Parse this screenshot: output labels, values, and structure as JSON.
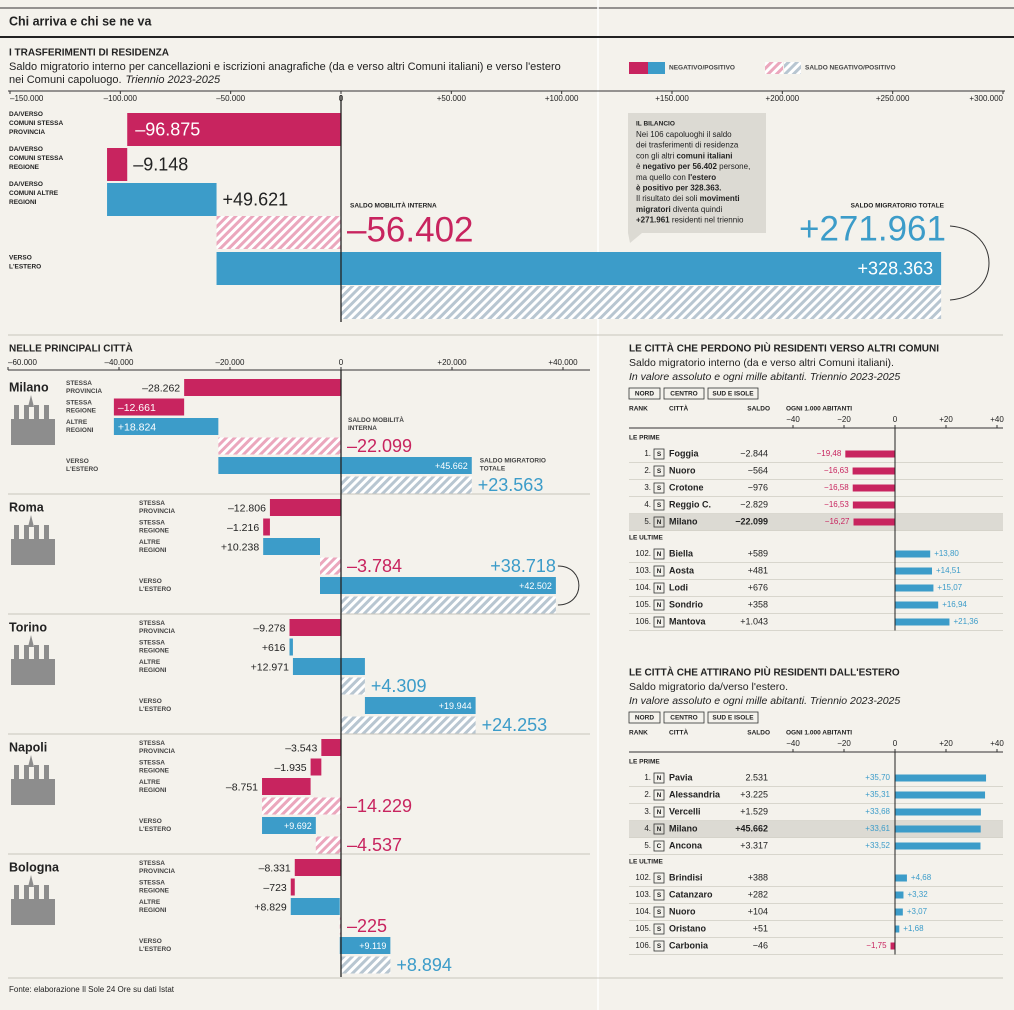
{
  "header": {
    "kicker": "Chi arriva e chi se ne va"
  },
  "source": "Fonte: elaborazione Il Sole 24 Ore su dati Istat",
  "chart_data": [
    {
      "type": "waterfall",
      "title": "I TRASFERIMENTI DI RESIDENZA",
      "subtitle": [
        "Saldo migratorio interno per cancellazioni e iscrizioni anagrafiche (da e verso altri Comuni italiani) e verso l'estero",
        "nei Comuni capoluogo."
      ],
      "subtitle_italic": "Triennio 2023-2025",
      "legend": [
        "NEGATIVO/POSITIVO",
        "SALDO NEGATIVO/POSITIVO"
      ],
      "colors": {
        "negative": "#c8245f",
        "positive": "#3c9cc9"
      },
      "hatch_colors": {
        "negative": "#eba7bd",
        "positive": "#b8c6d1"
      },
      "xlim": [
        -150000,
        300000
      ],
      "xticks": [
        {
          "value": -150000,
          "label": "–150.000"
        },
        {
          "value": -100000,
          "label": "–100.000"
        },
        {
          "value": -50000,
          "label": "–50.000"
        },
        0,
        {
          "value": 50000,
          "label": "+50.000"
        },
        {
          "value": 100000,
          "label": "+100.000"
        },
        {
          "value": 150000,
          "label": "+150.000"
        },
        {
          "value": 200000,
          "label": "+200.000"
        },
        {
          "value": 250000,
          "label": "+250.000"
        },
        {
          "value": 300000,
          "label": "+300.000"
        }
      ],
      "categories": [
        [
          "DA/VERSO",
          "COMUNI STESSA",
          "PROVINCIA"
        ],
        [
          "DA/VERSO",
          "COMUNI STESSA",
          "REGIONE"
        ],
        [
          "DA/VERSO",
          "COMUNI ALTRE",
          "REGIONI"
        ],
        [
          "VERSO",
          "L'ESTERO"
        ]
      ],
      "values": [
        -96875,
        -9148,
        49621,
        328363
      ],
      "value_labels": [
        "–96.875",
        "–9.148",
        "+49.621",
        "+328.363"
      ],
      "saldo_interno": {
        "title": "SALDO MOBILITÀ INTERNA",
        "value": -56402,
        "label": "–56.402"
      },
      "saldo_totale": {
        "title": "SALDO MIGRATORIO TOTALE",
        "value": 271961,
        "label": "+271.961"
      },
      "note": {
        "title": "IL BILANCIO",
        "lines": [
          [
            {
              "text": "Nei 106 capoluoghi il saldo",
              "bold": false
            }
          ],
          [
            {
              "text": "dei trasferimenti di residenza",
              "bold": false
            }
          ],
          [
            {
              "text": "con gli altri ",
              "bold": false
            },
            {
              "text": "comuni italiani",
              "bold": true
            }
          ],
          [
            {
              "text": "è ",
              "bold": false
            },
            {
              "text": "negativo per 56.402",
              "bold": true
            },
            {
              "text": " persone,",
              "bold": false
            }
          ],
          [
            {
              "text": "ma quello con ",
              "bold": false
            },
            {
              "text": "l'estero",
              "bold": true
            }
          ],
          [
            {
              "text": "è positivo per 328.363.",
              "bold": true
            }
          ],
          [
            {
              "text": "Il risultato dei soli ",
              "bold": false
            },
            {
              "text": "movimenti",
              "bold": true
            }
          ],
          [
            {
              "text": "migratori",
              "bold": true
            },
            {
              "text": " diventa quindi",
              "bold": false
            }
          ],
          [
            {
              "text": "+271.961",
              "bold": true
            },
            {
              "text": " residenti nel triennio",
              "bold": false
            }
          ]
        ]
      }
    },
    {
      "type": "waterfall-multiples",
      "title": "NELLE PRINCIPALI CITTÀ",
      "colors": {
        "negative": "#c8245f",
        "positive": "#3c9cc9"
      },
      "hatch_colors": {
        "negative": "#eba7bd",
        "positive": "#b8c6d1"
      },
      "xlim": [
        -60000,
        40000
      ],
      "xticks": [
        {
          "value": -60000,
          "label": "–60.000"
        },
        {
          "value": -40000,
          "label": "–40.000"
        },
        {
          "value": -20000,
          "label": "–20.000"
        },
        0,
        {
          "value": 20000,
          "label": "+20.000"
        },
        {
          "value": 40000,
          "label": "+40.000"
        }
      ],
      "categories": [
        [
          "STESSA",
          "PROVINCIA"
        ],
        [
          "STESSA",
          "REGIONE"
        ],
        [
          "ALTRE",
          "REGIONI"
        ],
        [
          "VERSO",
          "L'ESTERO"
        ]
      ],
      "saldo_interno_title": [
        "SALDO MOBILITÀ",
        "INTERNA"
      ],
      "saldo_totale_title": [
        "SALDO MIGRATORIO",
        "TOTALE"
      ],
      "cities": [
        {
          "name": "Milano",
          "values": [
            -28262,
            -12661,
            18824,
            45662
          ],
          "value_labels": [
            "–28.262",
            "–12.661",
            "+18.824",
            "+45.662"
          ],
          "saldo_interno": -22099,
          "saldo_interno_label": "–22.099",
          "saldo_totale": 23563,
          "saldo_totale_label": "+23.563"
        },
        {
          "name": "Roma",
          "values": [
            -12806,
            -1216,
            10238,
            42502
          ],
          "value_labels": [
            "–12.806",
            "–1.216",
            "+10.238",
            "+42.502"
          ],
          "saldo_interno": -3784,
          "saldo_interno_label": "–3.784",
          "saldo_totale": 38718,
          "saldo_totale_label": "+38.718"
        },
        {
          "name": "Torino",
          "values": [
            -9278,
            616,
            12971,
            19944
          ],
          "value_labels": [
            "–9.278",
            "+616",
            "+12.971",
            "+19.944"
          ],
          "saldo_interno": 4309,
          "saldo_interno_label": "+4.309",
          "saldo_totale": 24253,
          "saldo_totale_label": "+24.253"
        },
        {
          "name": "Napoli",
          "values": [
            -3543,
            -1935,
            -8751,
            9692
          ],
          "value_labels": [
            "–3.543",
            "–1.935",
            "–8.751",
            "+9.692"
          ],
          "saldo_interno": -14229,
          "saldo_interno_label": "–14.229",
          "saldo_totale": -4537,
          "saldo_totale_label": "–4.537"
        },
        {
          "name": "Bologna",
          "values": [
            -8331,
            -723,
            8829,
            9119
          ],
          "value_labels": [
            "–8.331",
            "–723",
            "+8.829",
            "+9.119"
          ],
          "saldo_interno": -225,
          "saldo_interno_label": "–225",
          "saldo_totale": 8894,
          "saldo_totale_label": "+8.894"
        }
      ]
    },
    {
      "type": "ranked-bar",
      "title": "LE CITTÀ CHE PERDONO PIÙ RESIDENTI VERSO ALTRI COMUNI",
      "subtitle": "Saldo migratorio interno (da e verso altri Comuni italiani).",
      "subtitle_italic": "In valore assoluto e ogni mille abitanti. Triennio 2023-2025",
      "area_keys": [
        "NORD",
        "CENTRO",
        "SUD E ISOLE"
      ],
      "columns": [
        "RANK",
        "CITTÀ",
        "SALDO",
        "OGNI 1.000 ABITANTI"
      ],
      "colors": {
        "negative": "#c8245f",
        "positive": "#3c9cc9"
      },
      "highlight": "Milano",
      "xlim": [
        -40,
        40
      ],
      "xticks": [
        {
          "value": -40,
          "label": "−40"
        },
        {
          "value": -20,
          "label": "−20"
        },
        0,
        {
          "value": 20,
          "label": "+20"
        },
        {
          "value": 40,
          "label": "+40"
        }
      ],
      "sections": [
        {
          "name": "LE PRIME",
          "ranks": [
            "1.",
            "2.",
            "3.",
            "4.",
            "5."
          ],
          "areas": [
            "S",
            "S",
            "S",
            "S",
            "N"
          ],
          "categories": [
            "Foggia",
            "Nuoro",
            "Crotone",
            "Reggio C.",
            "Milano"
          ],
          "saldo": [
            "−2.844",
            "−564",
            "−976",
            "−2.829",
            "−22.099"
          ],
          "values": [
            -19.48,
            -16.63,
            -16.58,
            -16.53,
            -16.27
          ],
          "value_labels": [
            "−19,48",
            "−16,63",
            "−16,58",
            "−16,53",
            "−16,27"
          ]
        },
        {
          "name": "LE ULTIME",
          "ranks": [
            "102.",
            "103.",
            "104.",
            "105.",
            "106."
          ],
          "areas": [
            "N",
            "N",
            "N",
            "N",
            "N"
          ],
          "categories": [
            "Biella",
            "Aosta",
            "Lodi",
            "Sondrio",
            "Mantova"
          ],
          "saldo": [
            "+589",
            "+481",
            "+676",
            "+358",
            "+1.043"
          ],
          "values": [
            13.8,
            14.51,
            15.07,
            16.94,
            21.36
          ],
          "value_labels": [
            "+13,80",
            "+14,51",
            "+15,07",
            "+16,94",
            "+21,36"
          ]
        }
      ]
    },
    {
      "type": "ranked-bar",
      "title": "LE CITTÀ CHE ATTIRANO PIÙ RESIDENTI DALL'ESTERO",
      "subtitle": "Saldo migratorio da/verso l'estero.",
      "subtitle_italic": "In valore assoluto e ogni mille abitanti. Triennio 2023-2025",
      "area_keys": [
        "NORD",
        "CENTRO",
        "SUD E ISOLE"
      ],
      "columns": [
        "RANK",
        "CITTÀ",
        "SALDO",
        "OGNI 1.000 ABITANTI"
      ],
      "colors": {
        "negative": "#c8245f",
        "positive": "#3c9cc9"
      },
      "highlight": "Milano",
      "xlim": [
        -40,
        40
      ],
      "xticks": [
        {
          "value": -40,
          "label": "−40"
        },
        {
          "value": -20,
          "label": "−20"
        },
        0,
        {
          "value": 20,
          "label": "+20"
        },
        {
          "value": 40,
          "label": "+40"
        }
      ],
      "sections": [
        {
          "name": "LE PRIME",
          "ranks": [
            "1.",
            "2.",
            "3.",
            "4.",
            "5."
          ],
          "areas": [
            "N",
            "N",
            "N",
            "N",
            "C"
          ],
          "categories": [
            "Pavia",
            "Alessandria",
            "Vercelli",
            "Milano",
            "Ancona"
          ],
          "saldo": [
            "2.531",
            "+3.225",
            "+1.529",
            "+45.662",
            "+3.317"
          ],
          "values": [
            35.7,
            35.31,
            33.68,
            33.61,
            33.52
          ],
          "value_labels": [
            "+35,70",
            "+35,31",
            "+33,68",
            "+33,61",
            "+33,52"
          ]
        },
        {
          "name": "LE ULTIME",
          "ranks": [
            "102.",
            "103.",
            "104.",
            "105.",
            "106."
          ],
          "areas": [
            "S",
            "S",
            "S",
            "S",
            "S"
          ],
          "categories": [
            "Brindisi",
            "Catanzaro",
            "Nuoro",
            "Oristano",
            "Carbonia"
          ],
          "saldo": [
            "+388",
            "+282",
            "+104",
            "+51",
            "−46"
          ],
          "values": [
            4.68,
            3.32,
            3.07,
            1.68,
            -1.75
          ],
          "value_labels": [
            "+4,68",
            "+3,32",
            "+3,07",
            "+1,68",
            "−1,75"
          ]
        }
      ]
    }
  ]
}
